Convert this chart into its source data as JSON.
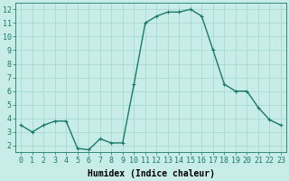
{
  "x": [
    0,
    1,
    2,
    3,
    4,
    5,
    6,
    7,
    8,
    9,
    10,
    11,
    12,
    13,
    14,
    15,
    16,
    17,
    18,
    19,
    20,
    21,
    22,
    23
  ],
  "y": [
    3.5,
    3.0,
    3.5,
    3.8,
    3.8,
    1.8,
    1.7,
    2.5,
    2.2,
    2.2,
    6.5,
    11.0,
    11.5,
    11.8,
    11.8,
    12.0,
    11.5,
    9.0,
    6.5,
    6.0,
    6.0,
    4.8,
    3.9,
    3.5
  ],
  "line_color": "#1a7a6a",
  "marker": "+",
  "marker_size": 3,
  "marker_color": "#1a7a6a",
  "bg_color": "#c8ece8",
  "grid_color": "#a8d8d4",
  "xlabel": "Humidex (Indice chaleur)",
  "xlabel_fontsize": 7,
  "ylabel_ticks": [
    2,
    3,
    4,
    5,
    6,
    7,
    8,
    9,
    10,
    11,
    12
  ],
  "ylim": [
    1.5,
    12.5
  ],
  "xlim": [
    -0.5,
    23.5
  ],
  "xticks": [
    0,
    1,
    2,
    3,
    4,
    5,
    6,
    7,
    8,
    9,
    10,
    11,
    12,
    13,
    14,
    15,
    16,
    17,
    18,
    19,
    20,
    21,
    22,
    23
  ],
  "tick_fontsize": 6,
  "line_width": 1.0
}
